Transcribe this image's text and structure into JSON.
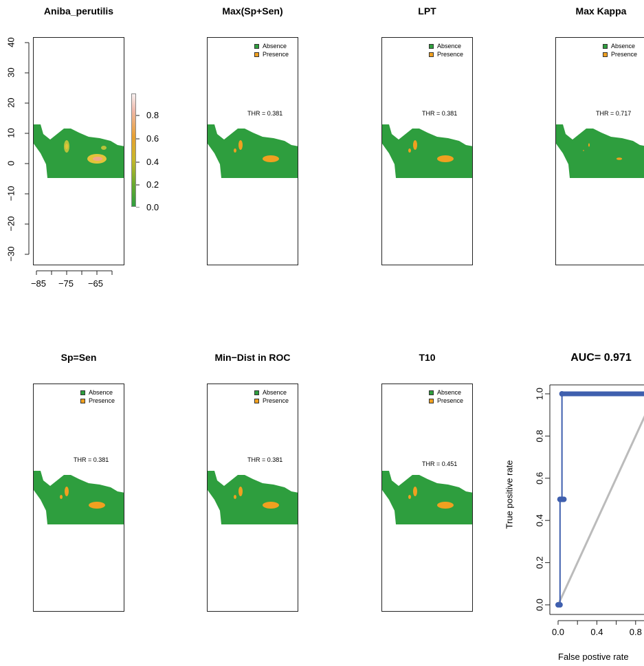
{
  "colors": {
    "absence": "#2e9e3e",
    "presence": "#f0a020",
    "roc_line": "#3f5fae",
    "diagonal": "#bbbbbb"
  },
  "legend": {
    "absence": "Absence",
    "presence": "Presence"
  },
  "thr_prefix": "THR = ",
  "suitability_panel": {
    "title": "Aniba_perutilis",
    "y_ticks": [
      "40",
      "30",
      "20",
      "10",
      "0",
      "−10",
      "−20",
      "−30"
    ],
    "x_ticks": [
      "−85",
      "−75",
      "−65"
    ],
    "colorbar_ticks": [
      "0.8",
      "0.6",
      "0.4",
      "0.2",
      "0.0"
    ]
  },
  "threshold_panels": [
    {
      "title": "Max(Sp+Sen)",
      "thr": "0.381"
    },
    {
      "title": "LPT",
      "thr": "0.381"
    },
    {
      "title": "Max Kappa",
      "thr": "0.717"
    },
    {
      "title": "Sp=Sen",
      "thr": "0.381"
    },
    {
      "title": "Min−Dist in ROC",
      "thr": "0.381"
    },
    {
      "title": "T10",
      "thr": "0.451"
    }
  ],
  "chart_data": {
    "type": "line",
    "title": "AUC= 0.971",
    "xlabel": "False postive rate",
    "ylabel": "True positive rate",
    "xlim": [
      0,
      1
    ],
    "ylim": [
      0,
      1
    ],
    "x_ticks": [
      "0.0",
      "0.4",
      "0.8"
    ],
    "y_ticks": [
      "0.0",
      "0.2",
      "0.4",
      "0.6",
      "0.8",
      "1.0"
    ],
    "series": [
      {
        "x": [
          0.0,
          0.02,
          0.02,
          0.04,
          0.04,
          1.0
        ],
        "y": [
          0.0,
          0.0,
          0.5,
          0.5,
          1.0,
          1.0
        ]
      }
    ]
  }
}
